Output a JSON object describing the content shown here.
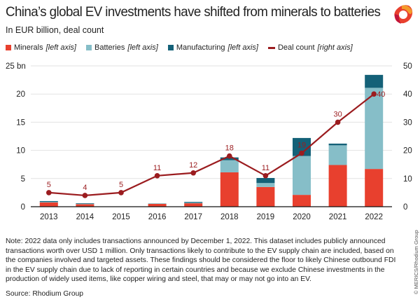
{
  "header": {
    "title": "China’s global EV investments have shifted from minerals to batteries",
    "subtitle": "In EUR billion, deal count"
  },
  "logo": {
    "icon": "merics-logo-icon"
  },
  "legend": [
    {
      "name": "Minerals",
      "axis": "[left axis]",
      "color": "#e8402e",
      "kind": "square"
    },
    {
      "name": "Batteries",
      "axis": "[left axis]",
      "color": "#86bec8",
      "kind": "square"
    },
    {
      "name": "Manufacturing",
      "axis": "[left axis]",
      "color": "#146178",
      "kind": "square"
    },
    {
      "name": "Deal count",
      "axis": "[right axis]",
      "color": "#9b1c1f",
      "kind": "line"
    }
  ],
  "chart_data": {
    "type": "bar",
    "stacked": true,
    "title": "China’s global EV investments have shifted from minerals to batteries",
    "subtitle": "In EUR billion, deal count",
    "categories": [
      "2013",
      "2014",
      "2015",
      "2016",
      "2017",
      "2018",
      "2019",
      "2020",
      "2021",
      "2022"
    ],
    "series": [
      {
        "name": "Minerals",
        "axis": "left",
        "type": "bar",
        "color": "#e8402e",
        "values": [
          0.8,
          0.45,
          0,
          0.5,
          0.65,
          6.1,
          3.5,
          2.1,
          7.4,
          6.7
        ]
      },
      {
        "name": "Batteries",
        "axis": "left",
        "type": "bar",
        "color": "#86bec8",
        "values": [
          0.05,
          0.1,
          0,
          0.1,
          0.05,
          2.15,
          0.7,
          6.9,
          3.5,
          14.4
        ]
      },
      {
        "name": "Manufacturing",
        "axis": "left",
        "type": "bar",
        "color": "#146178",
        "values": [
          0.15,
          0.05,
          0,
          0,
          0.15,
          0.5,
          0.9,
          3.2,
          0.3,
          2.3
        ]
      },
      {
        "name": "Deal count",
        "axis": "right",
        "type": "line",
        "color": "#9b1c1f",
        "values": [
          5,
          4,
          5,
          11,
          12,
          18,
          11,
          19,
          30,
          40
        ]
      }
    ],
    "left_axis": {
      "ylim": [
        0,
        25
      ],
      "ticks": [
        "0",
        "5",
        "10",
        "15",
        "20",
        "25 bn"
      ]
    },
    "right_axis": {
      "ylim": [
        0,
        50
      ],
      "ticks": [
        "0",
        "10",
        "20",
        "30",
        "40",
        "50"
      ]
    },
    "grid": true,
    "legend_position": "top-left"
  },
  "footer": {
    "note": "Note: 2022 data only includes transactions announced by December 1, 2022. This dataset includes publicly announced transactions worth over USD 1 million. Only transactions likely to contribute to the EV supply chain are included, based on the companies involved and targeted assets. These findings should be considered the floor to likely Chinese outbound FDI in the EV supply chain due to lack of reporting in certain countries and because we exclude Chinese investments in the production of widely used items, like copper wiring and steel, that may or may not go into an EV.",
    "source": "Source: Rhodium Group",
    "credit": "© MERICS/Rhodium Group"
  }
}
